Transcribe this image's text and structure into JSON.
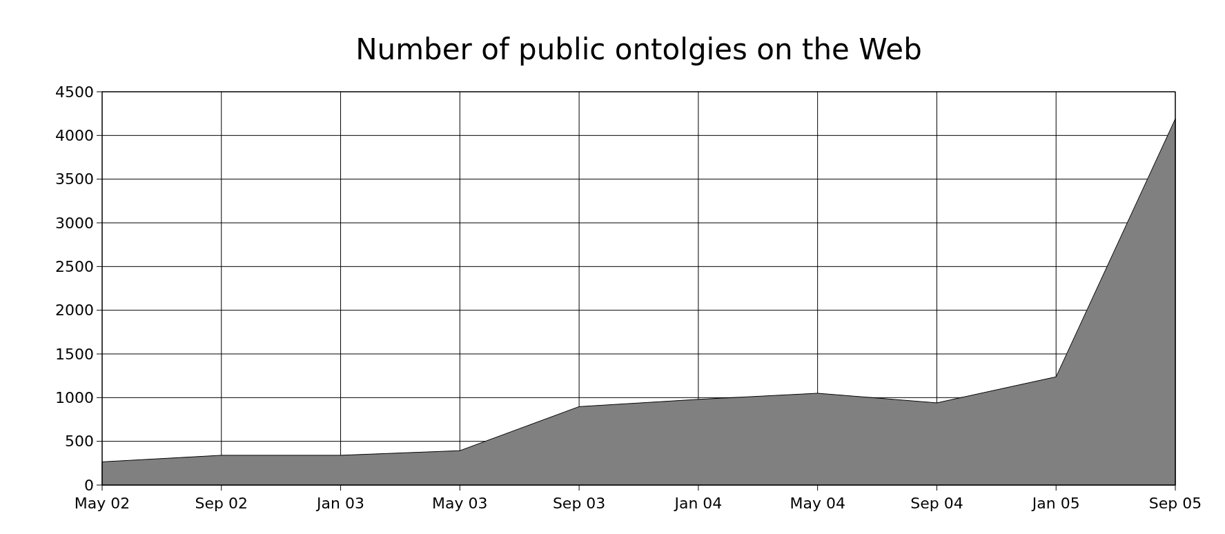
{
  "chart_data": {
    "type": "area",
    "title": "Number of public ontolgies on the Web",
    "categories": [
      "May 02",
      "Sep 02",
      "Jan 03",
      "May 03",
      "Sep 03",
      "Jan 04",
      "May 04",
      "Sep 04",
      "Jan 05",
      "Sep 05"
    ],
    "series": [
      {
        "color": "#808080",
        "values": [
          265,
          340,
          340,
          393,
          897,
          980,
          1050,
          940,
          1238,
          4190
        ]
      }
    ],
    "ylim": [
      0,
      4500
    ],
    "yticks": [
      0,
      500,
      1000,
      1500,
      2000,
      2500,
      3000,
      3500,
      4000,
      4500
    ],
    "grid": true
  }
}
